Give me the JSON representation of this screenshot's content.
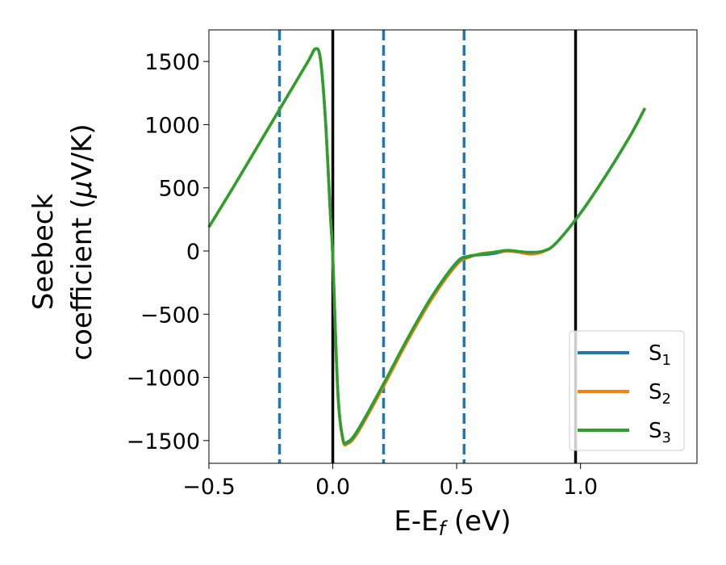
{
  "chart_data": {
    "type": "line",
    "xlabel": {
      "main": "E-E",
      "sub": "f",
      "tail": " (eV)"
    },
    "ylabel": {
      "line1": "Seebeck",
      "line2": "coefficient  (",
      "mu": "μ",
      "unit": "V/K)"
    },
    "xlim": [
      -0.5,
      1.47
    ],
    "ylim": [
      -1680,
      1750
    ],
    "xticks": [
      {
        "value": -0.5,
        "label": "−0.5"
      },
      {
        "value": 0.0,
        "label": "0.0"
      },
      {
        "value": 0.5,
        "label": "0.5"
      },
      {
        "value": 1.0,
        "label": "1.0"
      }
    ],
    "yticks": [
      {
        "value": 1500,
        "label": "1500"
      },
      {
        "value": 1000,
        "label": "1000"
      },
      {
        "value": 500,
        "label": "500"
      },
      {
        "value": 0,
        "label": "0"
      },
      {
        "value": -500,
        "label": "−500"
      },
      {
        "value": -1000,
        "label": "−1000"
      },
      {
        "value": -1500,
        "label": "−1500"
      }
    ],
    "vlines": [
      {
        "x": -0.215,
        "style": "dashed",
        "color": "#1f77b4"
      },
      {
        "x": 0.0,
        "style": "solid",
        "color": "#000000"
      },
      {
        "x": 0.205,
        "style": "dashed",
        "color": "#1f77b4"
      },
      {
        "x": 0.53,
        "style": "dashed",
        "color": "#1f77b4"
      },
      {
        "x": 0.98,
        "style": "solid",
        "color": "#000000"
      }
    ],
    "series": [
      {
        "name": "S",
        "sub": "1",
        "color": "#1f77b4",
        "x": [
          -0.5,
          -0.4,
          -0.3,
          -0.2,
          -0.1,
          -0.07,
          -0.05,
          -0.03,
          -0.01,
          0.0,
          0.02,
          0.04,
          0.06,
          0.1,
          0.2,
          0.3,
          0.4,
          0.5,
          0.55,
          0.6,
          0.65,
          0.7,
          0.75,
          0.8,
          0.85,
          0.9,
          1.0,
          1.1,
          1.2,
          1.26
        ],
        "y": [
          190,
          510,
          840,
          1170,
          1500,
          1600,
          1520,
          1050,
          300,
          -50,
          -1100,
          -1480,
          -1510,
          -1420,
          -1070,
          -700,
          -360,
          -90,
          -40,
          -30,
          -20,
          0,
          -5,
          -10,
          0,
          60,
          300,
          590,
          910,
          1130
        ]
      },
      {
        "name": "S",
        "sub": "2",
        "color": "#ff7f0e",
        "x": [
          -0.5,
          -0.4,
          -0.3,
          -0.2,
          -0.1,
          -0.07,
          -0.05,
          -0.03,
          -0.01,
          0.0,
          0.02,
          0.04,
          0.06,
          0.1,
          0.2,
          0.3,
          0.4,
          0.5,
          0.55,
          0.6,
          0.65,
          0.7,
          0.75,
          0.8,
          0.85,
          0.9,
          1.0,
          1.1,
          1.2,
          1.26
        ],
        "y": [
          190,
          510,
          840,
          1170,
          1500,
          1600,
          1520,
          1050,
          300,
          -50,
          -1110,
          -1490,
          -1525,
          -1440,
          -1090,
          -720,
          -380,
          -110,
          -50,
          -20,
          -10,
          0,
          -10,
          -25,
          -5,
          60,
          300,
          590,
          910,
          1130
        ]
      },
      {
        "name": "S",
        "sub": "3",
        "color": "#2ca02c",
        "x": [
          -0.5,
          -0.4,
          -0.3,
          -0.2,
          -0.1,
          -0.07,
          -0.05,
          -0.03,
          -0.01,
          0.0,
          0.02,
          0.04,
          0.06,
          0.1,
          0.2,
          0.3,
          0.4,
          0.5,
          0.55,
          0.6,
          0.65,
          0.7,
          0.75,
          0.8,
          0.85,
          0.9,
          1.0,
          1.1,
          1.2,
          1.26
        ],
        "y": [
          190,
          510,
          840,
          1170,
          1500,
          1600,
          1520,
          1050,
          300,
          -50,
          -1100,
          -1480,
          -1515,
          -1425,
          -1070,
          -700,
          -360,
          -95,
          -45,
          -25,
          -10,
          5,
          -3,
          -12,
          0,
          60,
          300,
          590,
          910,
          1130
        ]
      }
    ],
    "legend_position": "lower-right",
    "grid": false
  }
}
